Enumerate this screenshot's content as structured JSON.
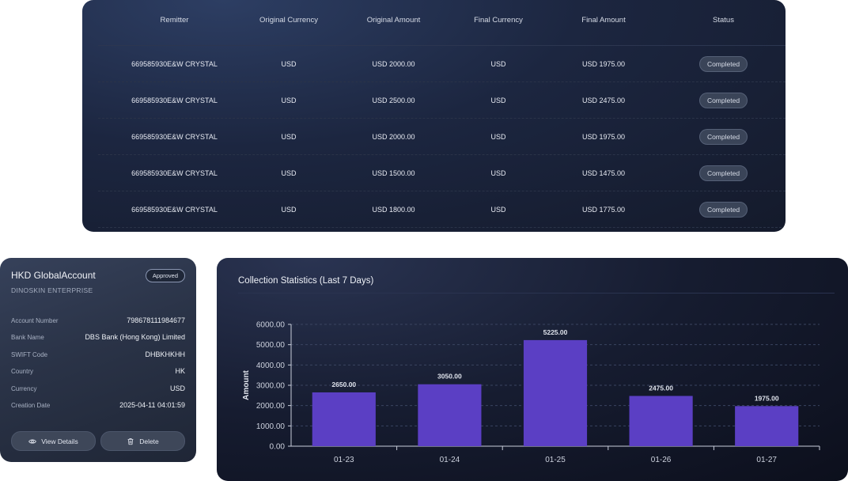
{
  "table": {
    "columns": [
      "Remitter",
      "Original Currency",
      "Original Amount",
      "Final Currency",
      "Final Amount",
      "Status"
    ],
    "rows": [
      {
        "remitter": "669585930E&W CRYSTAL",
        "orig_currency": "USD",
        "orig_amount": "USD 2000.00",
        "final_currency": "USD",
        "final_amount": "USD 1975.00",
        "status": "Completed"
      },
      {
        "remitter": "669585930E&W CRYSTAL",
        "orig_currency": "USD",
        "orig_amount": "USD 2500.00",
        "final_currency": "USD",
        "final_amount": "USD 2475.00",
        "status": "Completed"
      },
      {
        "remitter": "669585930E&W CRYSTAL",
        "orig_currency": "USD",
        "orig_amount": "USD 2000.00",
        "final_currency": "USD",
        "final_amount": "USD 1975.00",
        "status": "Completed"
      },
      {
        "remitter": "669585930E&W CRYSTAL",
        "orig_currency": "USD",
        "orig_amount": "USD 1500.00",
        "final_currency": "USD",
        "final_amount": "USD 1475.00",
        "status": "Completed"
      },
      {
        "remitter": "669585930E&W CRYSTAL",
        "orig_currency": "USD",
        "orig_amount": "USD 1800.00",
        "final_currency": "USD",
        "final_amount": "USD 1775.00",
        "status": "Completed"
      }
    ]
  },
  "account": {
    "title": "HKD GlobalAccount",
    "subtitle": "DINOSKIN ENTERPRISE",
    "badge": "Approved",
    "fields": [
      {
        "label": "Account Number",
        "value": "798678111984677"
      },
      {
        "label": "Bank Name",
        "value": "DBS Bank (Hong Kong) Limited"
      },
      {
        "label": "SWIFT Code",
        "value": "DHBKHKHH"
      },
      {
        "label": "Country",
        "value": "HK"
      },
      {
        "label": "Currency",
        "value": "USD"
      },
      {
        "label": "Creation Date",
        "value": "2025-04-11 04:01:59"
      }
    ],
    "view_label": "View Details",
    "delete_label": "Delete"
  },
  "colors": {
    "bar": "#5b3fc4",
    "grid": "#3a4460",
    "axis": "#c9cedb"
  },
  "chart_data": {
    "type": "bar",
    "title": "Collection Statistics (Last 7 Days)",
    "categories": [
      "01-23",
      "01-24",
      "01-25",
      "01-26",
      "01-27"
    ],
    "values": [
      2650,
      3050,
      5225,
      2475,
      1975
    ],
    "value_labels": [
      "2650.00",
      "3050.00",
      "5225.00",
      "2475.00",
      "1975.00"
    ],
    "ylabel": "Amount",
    "xlabel": "",
    "ylim": [
      0,
      6000
    ],
    "yticks": [
      0,
      1000,
      2000,
      3000,
      4000,
      5000,
      6000
    ],
    "ytick_labels": [
      "0.00",
      "1000.00",
      "2000.00",
      "3000.00",
      "4000.00",
      "5000.00",
      "6000.00"
    ],
    "grid": true
  }
}
